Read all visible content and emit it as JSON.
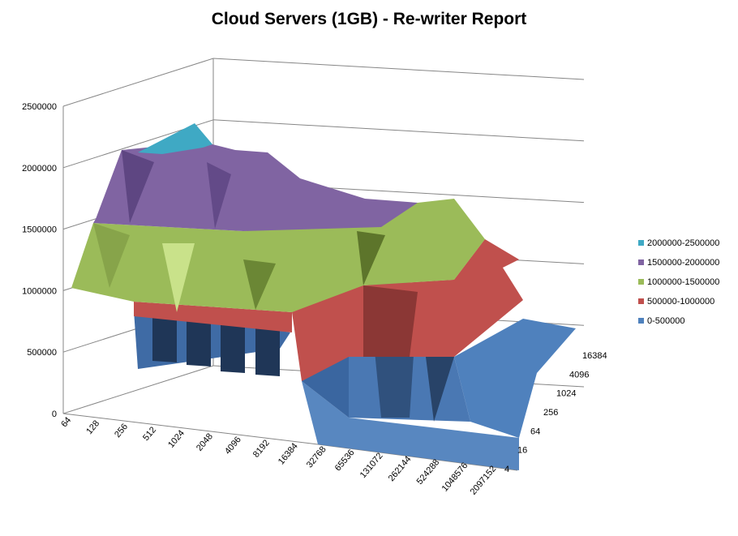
{
  "chart_data": {
    "type": "surface",
    "title": "Cloud Servers (1GB)  - Re-writer Report",
    "x_axis": {
      "ticks": [
        "64",
        "128",
        "256",
        "512",
        "1024",
        "2048",
        "4096",
        "8192",
        "16384",
        "32768",
        "65536",
        "131072",
        "262144",
        "524288",
        "1048576",
        "2097152"
      ]
    },
    "y_axis": {
      "ticks": [
        "4",
        "16",
        "64",
        "256",
        "1024",
        "4096",
        "16384"
      ]
    },
    "z_axis": {
      "ticks": [
        "0",
        "500000",
        "1000000",
        "1500000",
        "2000000",
        "2500000"
      ],
      "range": [
        0,
        2500000
      ]
    },
    "legend": {
      "position": "right",
      "items": [
        {
          "label": "2000000-2500000",
          "color": "#3fa9c4"
        },
        {
          "label": "1500000-2000000",
          "color": "#8064a2"
        },
        {
          "label": "1000000-1500000",
          "color": "#9bbb59"
        },
        {
          "label": "500000-1000000",
          "color": "#c0504d"
        },
        {
          "label": "0-500000",
          "color": "#4f81bd"
        }
      ]
    },
    "grid": true,
    "surface_profile": {
      "front_band_values": [
        1000000,
        1500000,
        1500000,
        1000000,
        1000000,
        1000000,
        1000000,
        1000000,
        1000000,
        0,
        0,
        0,
        0,
        0,
        0,
        0
      ],
      "peak_value": 2300000
    }
  }
}
